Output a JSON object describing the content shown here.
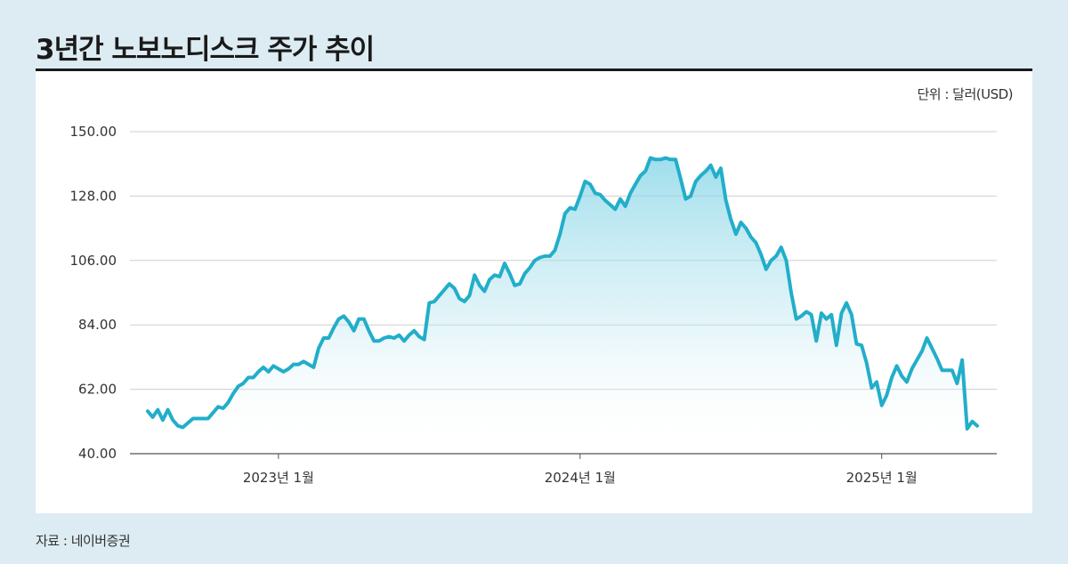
{
  "title": "3년간 노보노디스크 주가 추이",
  "unit_label": "단위 : 달러(USD)",
  "source_label": "자료 : 네이버증권",
  "colors": {
    "line": "#22aec9",
    "fill_top": "#7fd3e6",
    "background": "#dcecf2",
    "grid": "#cfcfcf"
  },
  "chart_data": {
    "type": "area",
    "title": "3년간 노보노디스크 주가 추이",
    "xlabel": "",
    "ylabel": "",
    "unit": "달러(USD)",
    "ylim": [
      40,
      150
    ],
    "y_ticks": [
      "150.00",
      "128.00",
      "106.00",
      "84.00",
      "62.00",
      "40.00"
    ],
    "y_tick_values": [
      150,
      128,
      106,
      84,
      62,
      40
    ],
    "x_ticks": [
      "2023년 1월",
      "2024년 1월",
      "2025년 1월"
    ],
    "x_tick_index": [
      26,
      86,
      146
    ],
    "grid": true,
    "legend": "none",
    "values": [
      54.5,
      52.5,
      55,
      51.5,
      55,
      51.5,
      49.5,
      49,
      50.5,
      52,
      52,
      52,
      52,
      54,
      56,
      55.5,
      57.5,
      60.5,
      63,
      64,
      66,
      66,
      68,
      69.5,
      68,
      70,
      69,
      68,
      69,
      70.5,
      70.5,
      71.5,
      70.5,
      69.5,
      76,
      79.5,
      79.5,
      83,
      86,
      87,
      85,
      82,
      86,
      86,
      82,
      78.5,
      78.5,
      79.5,
      80,
      79.5,
      80.5,
      78.5,
      80.5,
      82,
      80,
      79,
      91.5,
      92,
      94,
      96,
      98,
      96.5,
      93,
      92,
      94,
      101,
      97.5,
      95.5,
      99.5,
      101,
      100.5,
      105,
      101.5,
      97.5,
      98,
      101.5,
      103.5,
      106,
      107,
      107.5,
      107.5,
      109.5,
      115,
      122,
      124,
      123.5,
      128,
      133,
      132,
      129,
      128.5,
      126.5,
      125,
      123.5,
      127,
      124.5,
      129,
      132,
      135,
      136.5,
      141,
      140.5,
      140.5,
      141,
      140.5,
      140.5,
      134,
      127,
      128,
      133,
      135,
      136.5,
      138.5,
      134.5,
      137.5,
      126.5,
      120,
      115,
      119,
      117,
      114,
      112,
      108,
      103,
      106,
      107.5,
      110.5,
      106,
      95,
      86,
      87,
      88.5,
      87.5,
      78.5,
      88,
      86,
      87.5,
      77,
      88,
      91.5,
      87.5,
      77.5,
      77,
      71,
      62.5,
      64.5,
      56.5,
      60,
      66,
      70,
      66.5,
      64.5,
      69,
      72,
      75,
      79.5,
      76,
      72.5,
      68.5,
      68.5,
      68.5,
      64,
      72,
      48.5,
      51,
      49.5
    ]
  }
}
